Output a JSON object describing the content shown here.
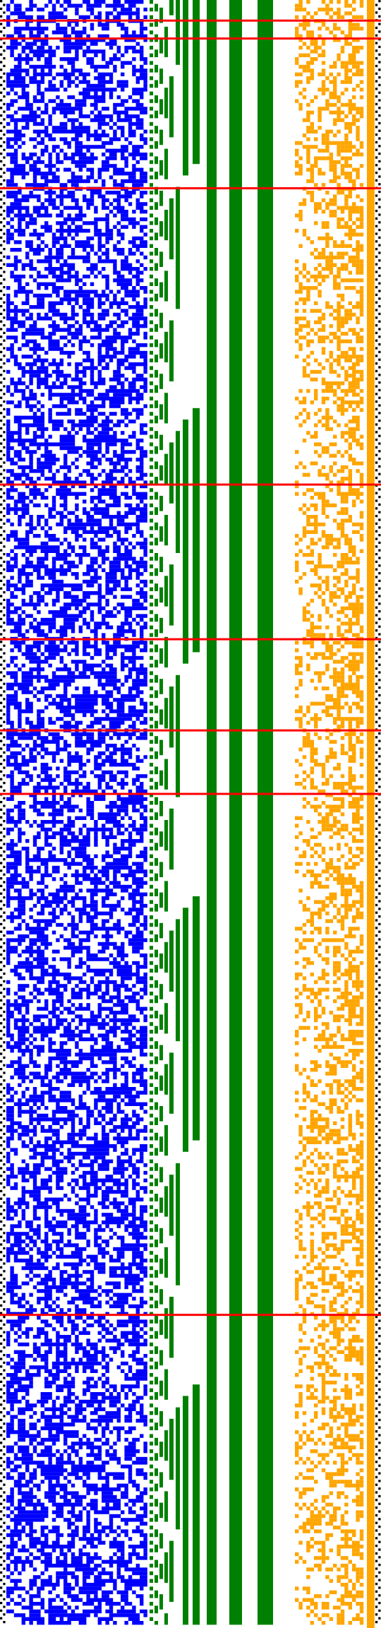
{
  "title": "",
  "colors": {
    "background": "#ffffff",
    "border": "#000000",
    "blue_bits": "#0000ff",
    "green_tree": "#008000",
    "orange_bits": "#ffa500",
    "marker": "#ff0000"
  },
  "regions": [
    {
      "name": "left-border",
      "color": "border",
      "pattern": "dotted"
    },
    {
      "name": "blue-bit-field",
      "color": "blue_bits",
      "density": 0.55
    },
    {
      "name": "green-binary-counter",
      "color": "green_tree",
      "pattern": "counter"
    },
    {
      "name": "orange-bit-field",
      "color": "orange_bits",
      "density": 0.45
    },
    {
      "name": "right-border",
      "color": "border",
      "pattern": "dotted"
    }
  ],
  "marker_rows_fraction": [
    0.012,
    0.023,
    0.115,
    0.297,
    0.392,
    0.448,
    0.487,
    0.807
  ]
}
